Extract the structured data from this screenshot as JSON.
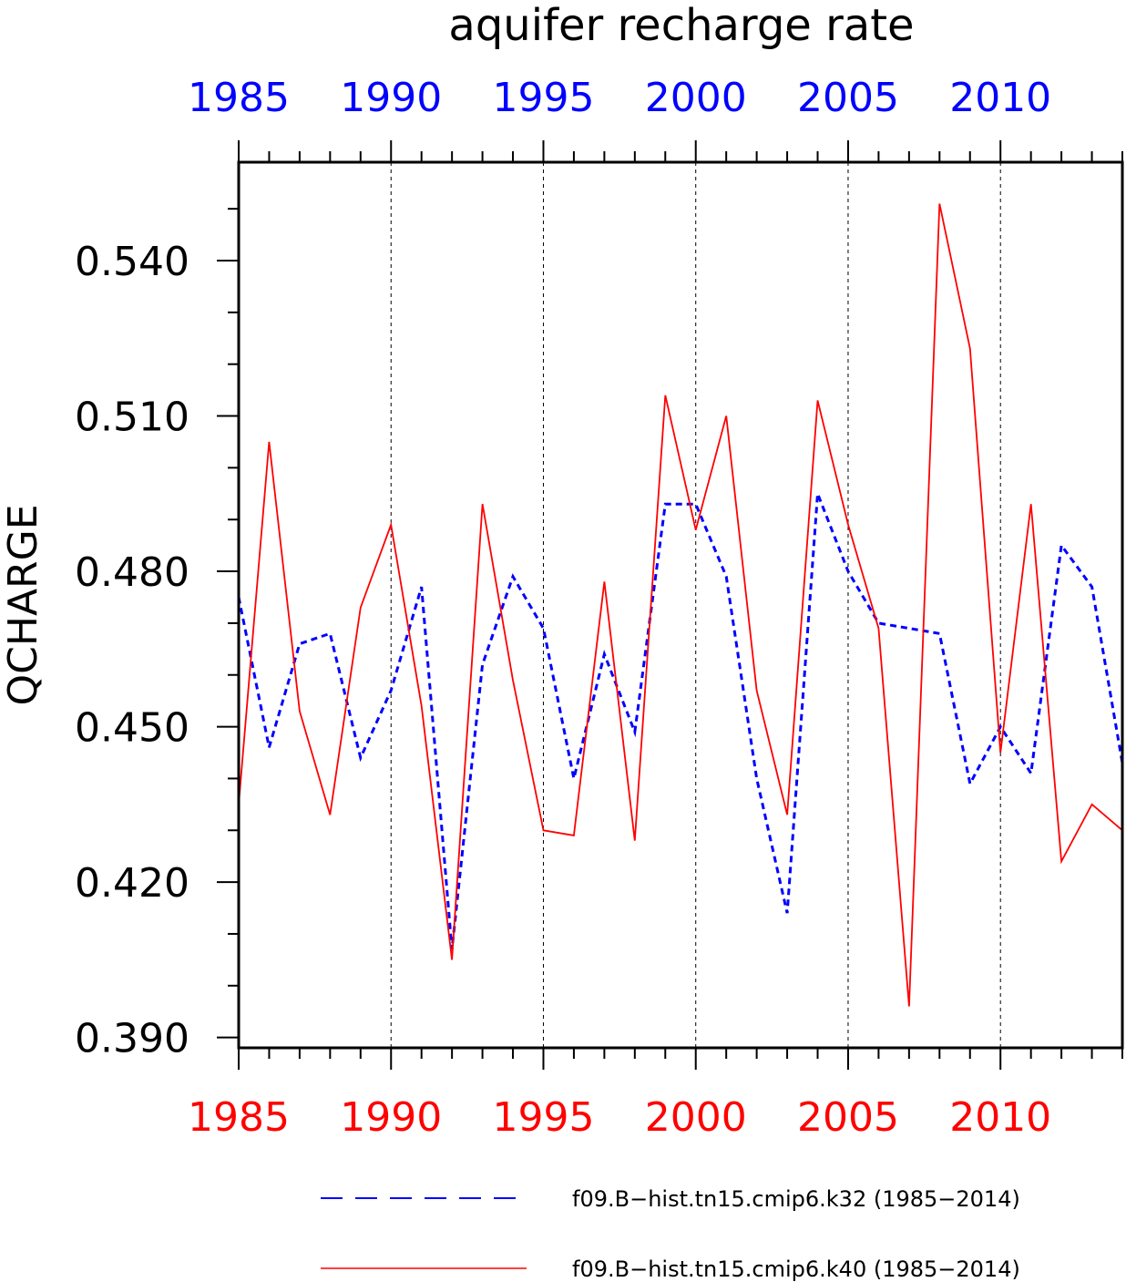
{
  "chart_data": {
    "type": "line",
    "title": "aquifer recharge rate",
    "ylabel": "QCHARGE",
    "xlabel": "",
    "xlim": [
      1985,
      2014
    ],
    "ylim": [
      0.388,
      0.559
    ],
    "yticks": [
      0.39,
      0.42,
      0.45,
      0.48,
      0.51,
      0.54
    ],
    "ytick_labels": [
      "0.390",
      "0.420",
      "0.450",
      "0.480",
      "0.510",
      "0.540"
    ],
    "xticks": [
      1985,
      1990,
      1995,
      2000,
      2005,
      2010
    ],
    "xtick_labels_top": [
      "1985",
      "1990",
      "1995",
      "2000",
      "2005",
      "2010"
    ],
    "xtick_labels_bottom": [
      "1985",
      "1990",
      "1995",
      "2000",
      "2005",
      "2010"
    ],
    "grid": "vertical dashed at major x ticks",
    "legend_position": "bottom",
    "x": [
      1985,
      1986,
      1987,
      1988,
      1989,
      1990,
      1991,
      1992,
      1993,
      1994,
      1995,
      1996,
      1997,
      1998,
      1999,
      2000,
      2001,
      2002,
      2003,
      2004,
      2005,
      2006,
      2007,
      2008,
      2009,
      2010,
      2011,
      2012,
      2013,
      2014
    ],
    "series": [
      {
        "name": "f09.B−hist.tn15.cmip6.k32 (1985−2014)",
        "color": "#0000ff",
        "style": "dashed",
        "values": [
          0.475,
          0.446,
          0.466,
          0.468,
          0.444,
          0.457,
          0.477,
          0.407,
          0.462,
          0.479,
          0.469,
          0.44,
          0.464,
          0.449,
          0.493,
          0.493,
          0.479,
          0.44,
          0.414,
          0.495,
          0.48,
          0.47,
          0.469,
          0.468,
          0.439,
          0.45,
          0.441,
          0.485,
          0.477,
          0.443
        ]
      },
      {
        "name": "f09.B−hist.tn15.cmip6.k40 (1985−2014)",
        "color": "#ff0000",
        "style": "solid",
        "values": [
          0.435,
          0.505,
          0.453,
          0.433,
          0.473,
          0.489,
          0.454,
          0.405,
          0.493,
          0.459,
          0.43,
          0.429,
          0.478,
          0.428,
          0.514,
          0.488,
          0.51,
          0.457,
          0.433,
          0.513,
          0.489,
          0.469,
          0.396,
          0.551,
          0.523,
          0.445,
          0.493,
          0.424,
          0.435,
          0.43
        ]
      }
    ]
  }
}
